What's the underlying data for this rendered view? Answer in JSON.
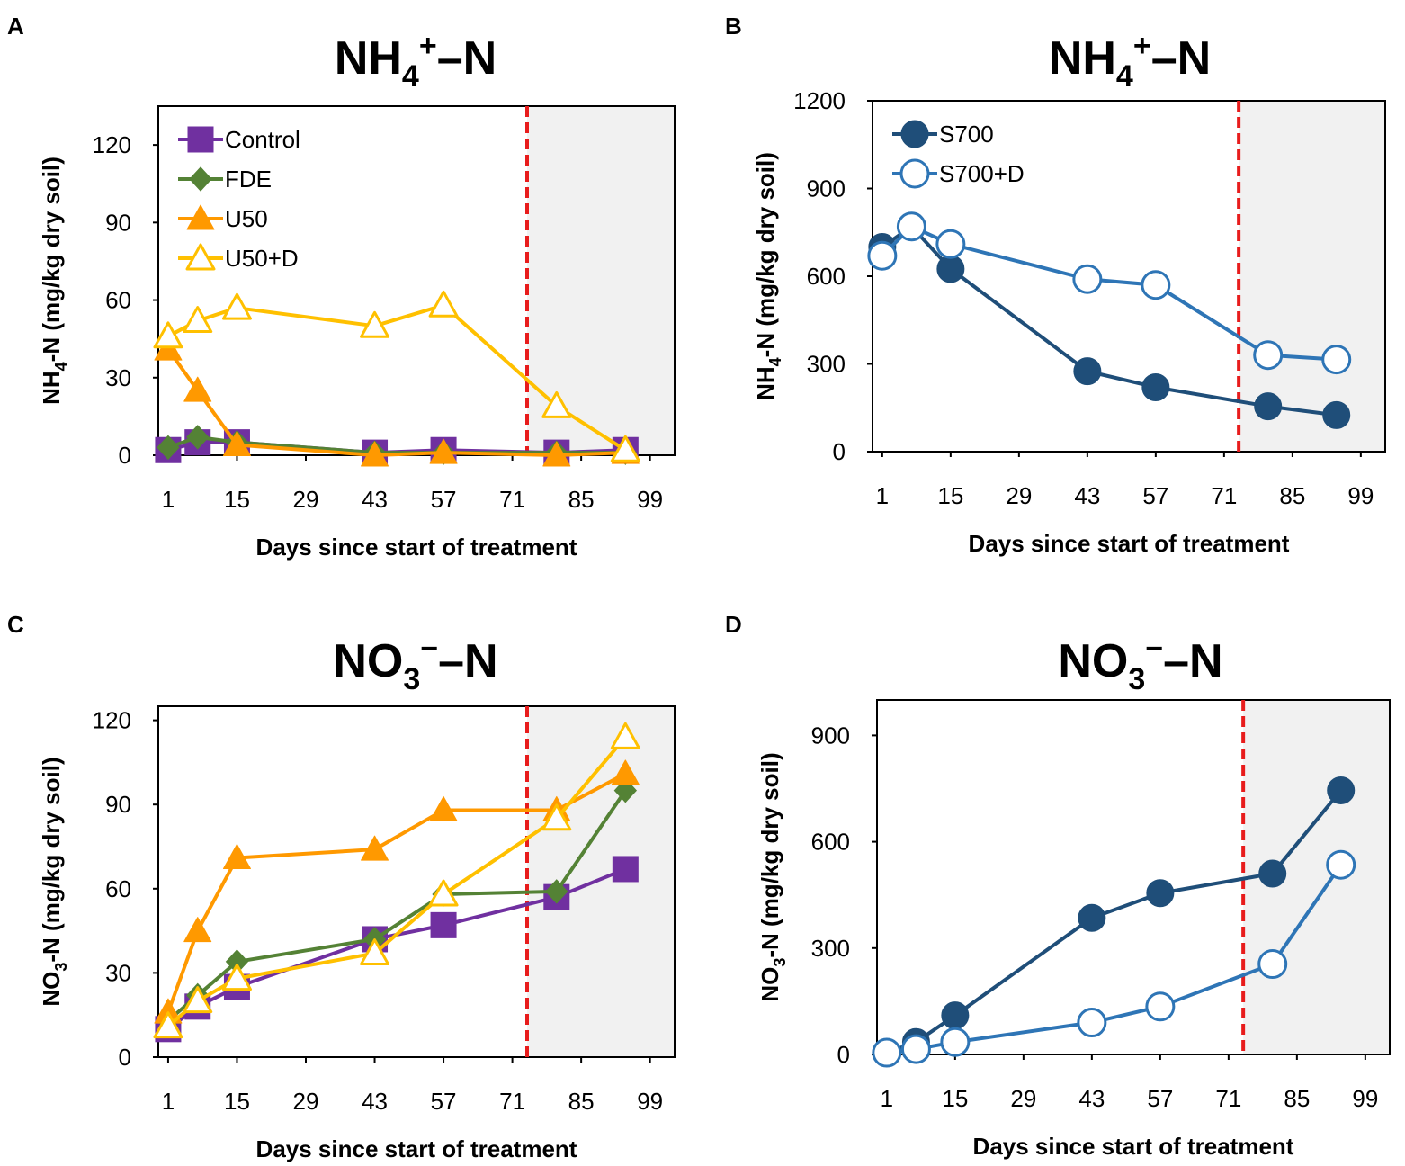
{
  "chart_data": [
    {
      "panel": "A",
      "type": "line",
      "title_main": "NH",
      "title_sub": "4",
      "title_sup": "+",
      "title_rest": "–N",
      "ylabel_main": "NH",
      "ylabel_sub": "4",
      "ylabel_rest": "-N (mg/kg dry soil)",
      "xlabel": "Days since start of treatment",
      "x_ticks": [
        1,
        15,
        29,
        43,
        57,
        71,
        85,
        99
      ],
      "y_ticks": [
        0,
        30,
        60,
        90,
        120
      ],
      "xlim": [
        -1,
        104
      ],
      "ylim": [
        0,
        135
      ],
      "post_period_start_day": 74,
      "legend_position": "top-left",
      "series": [
        {
          "name": "Control",
          "color": "#7030a0",
          "marker": "square",
          "filled": true,
          "x": [
            1,
            7,
            15,
            43,
            57,
            80,
            94
          ],
          "y": [
            2,
            5,
            5,
            1,
            2,
            1,
            2
          ]
        },
        {
          "name": "FDE",
          "color": "#548235",
          "marker": "diamond",
          "filled": true,
          "x": [
            1,
            7,
            15,
            43,
            57,
            80,
            94
          ],
          "y": [
            3,
            7,
            5,
            1,
            1,
            1,
            1
          ]
        },
        {
          "name": "U50",
          "color": "#ff9900",
          "marker": "triangle",
          "filled": true,
          "x": [
            1,
            7,
            15,
            43,
            57,
            80,
            94
          ],
          "y": [
            41,
            25,
            4,
            0,
            1,
            0,
            1
          ]
        },
        {
          "name": "U50+D",
          "color": "#ffc000",
          "marker": "triangle",
          "filled": false,
          "x": [
            1,
            7,
            15,
            43,
            57,
            80,
            94
          ],
          "y": [
            46,
            52,
            57,
            50,
            58,
            19,
            2
          ]
        }
      ]
    },
    {
      "panel": "B",
      "type": "line",
      "title_main": "NH",
      "title_sub": "4",
      "title_sup": "+",
      "title_rest": "–N",
      "ylabel_main": "NH",
      "ylabel_sub": "4",
      "ylabel_rest": "-N (mg/kg dry soil)",
      "xlabel": "Days since start of treatment",
      "x_ticks": [
        1,
        15,
        29,
        43,
        57,
        71,
        85,
        99
      ],
      "y_ticks": [
        0,
        300,
        600,
        900,
        1200
      ],
      "xlim": [
        -1,
        104
      ],
      "ylim": [
        0,
        1200
      ],
      "post_period_start_day": 74,
      "legend_position": "top-left",
      "series": [
        {
          "name": "S700",
          "color": "#1f4e79",
          "marker": "circle",
          "filled": true,
          "x": [
            1,
            7,
            15,
            43,
            57,
            80,
            94
          ],
          "y": [
            700,
            770,
            625,
            275,
            220,
            155,
            125
          ]
        },
        {
          "name": "S700+D",
          "color": "#2e75b6",
          "marker": "circle",
          "filled": false,
          "x": [
            1,
            7,
            15,
            43,
            57,
            80,
            94
          ],
          "y": [
            670,
            770,
            710,
            590,
            570,
            330,
            315
          ]
        }
      ]
    },
    {
      "panel": "C",
      "type": "line",
      "title_main": "NO",
      "title_sub": "3",
      "title_sup": "−",
      "title_rest": "–N",
      "ylabel_main": "NO",
      "ylabel_sub": "3",
      "ylabel_rest": "-N (mg/kg dry soil)",
      "xlabel": "Days since start of treatment",
      "x_ticks": [
        1,
        15,
        29,
        43,
        57,
        71,
        85,
        99
      ],
      "y_ticks": [
        0,
        30,
        60,
        90,
        120
      ],
      "xlim": [
        -1,
        104
      ],
      "ylim": [
        0,
        125
      ],
      "post_period_start_day": 74,
      "legend_position": "none",
      "series": [
        {
          "name": "Control",
          "color": "#7030a0",
          "marker": "square",
          "filled": true,
          "x": [
            1,
            7,
            15,
            43,
            57,
            80,
            94
          ],
          "y": [
            10,
            18,
            25,
            42,
            47,
            57,
            67
          ]
        },
        {
          "name": "FDE",
          "color": "#548235",
          "marker": "diamond",
          "filled": true,
          "x": [
            1,
            7,
            15,
            43,
            57,
            80,
            94
          ],
          "y": [
            13,
            22,
            34,
            42,
            58,
            59,
            95
          ]
        },
        {
          "name": "U50",
          "color": "#ff9900",
          "marker": "triangle",
          "filled": true,
          "x": [
            1,
            7,
            15,
            43,
            57,
            80,
            94
          ],
          "y": [
            16,
            45,
            71,
            74,
            88,
            88,
            101
          ]
        },
        {
          "name": "U50+D",
          "color": "#ffc000",
          "marker": "triangle",
          "filled": false,
          "x": [
            1,
            7,
            15,
            43,
            57,
            80,
            94
          ],
          "y": [
            11,
            20,
            28,
            37,
            58,
            85,
            114
          ]
        }
      ]
    },
    {
      "panel": "D",
      "type": "line",
      "title_main": "NO",
      "title_sub": "3",
      "title_sup": "−",
      "title_rest": "–N",
      "ylabel_main": "NO",
      "ylabel_sub": "3",
      "ylabel_rest": "-N (mg/kg dry soil)",
      "xlabel": "Days since start of treatment",
      "x_ticks": [
        1,
        15,
        29,
        43,
        57,
        71,
        85,
        99
      ],
      "y_ticks": [
        0,
        300,
        600,
        900
      ],
      "xlim": [
        -1,
        104
      ],
      "ylim": [
        0,
        1000
      ],
      "post_period_start_day": 74,
      "legend_position": "none",
      "series": [
        {
          "name": "S700",
          "color": "#1f4e79",
          "marker": "circle",
          "filled": true,
          "x": [
            1,
            7,
            15,
            43,
            57,
            80,
            94
          ],
          "y": [
            5,
            35,
            110,
            385,
            455,
            510,
            745
          ]
        },
        {
          "name": "S700+D",
          "color": "#2e75b6",
          "marker": "circle",
          "filled": false,
          "x": [
            1,
            7,
            15,
            43,
            57,
            80,
            94
          ],
          "y": [
            5,
            15,
            35,
            90,
            135,
            255,
            535
          ]
        }
      ]
    }
  ],
  "colors": {
    "dashed_line": "#e81c1c",
    "shade": "#f1f1f1",
    "axis": "#000000"
  }
}
